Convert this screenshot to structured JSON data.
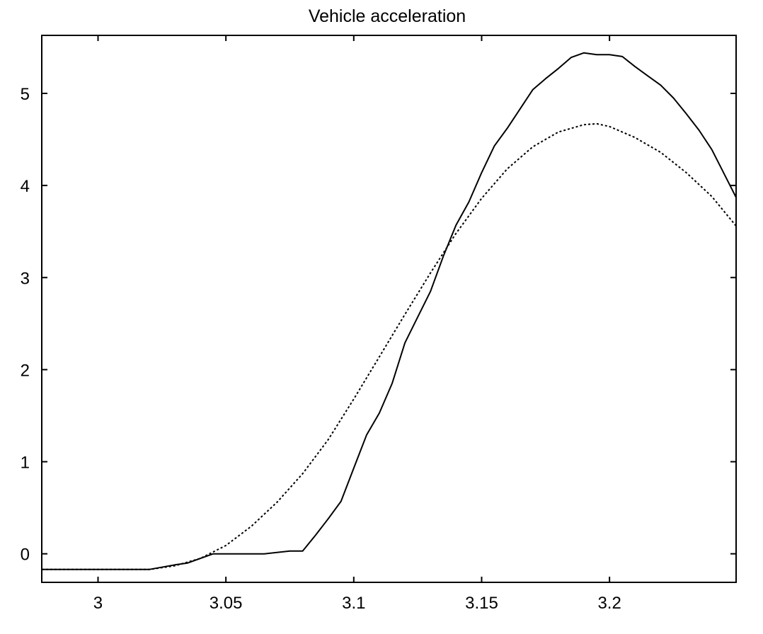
{
  "chart_data": {
    "type": "line",
    "title": "Vehicle acceleration",
    "xlabel": "",
    "ylabel": "",
    "xlim": [
      2.978,
      3.2495
    ],
    "ylim": [
      -0.31,
      5.63
    ],
    "xticks": [
      3,
      3.05,
      3.1,
      3.15,
      3.2
    ],
    "xtick_labels": [
      "3",
      "3.05",
      "3.1",
      "3.15",
      "3.2"
    ],
    "yticks": [
      0,
      1,
      2,
      3,
      4,
      5
    ],
    "ytick_labels": [
      "0",
      "1",
      "2",
      "3",
      "4",
      "5"
    ],
    "grid": false,
    "series": [
      {
        "style": "solid",
        "color": "#000000",
        "x": [
          2.978,
          3.02,
          3.03,
          3.035,
          3.045,
          3.055,
          3.065,
          3.075,
          3.08,
          3.085,
          3.09,
          3.095,
          3.1,
          3.105,
          3.11,
          3.115,
          3.12,
          3.125,
          3.13,
          3.135,
          3.14,
          3.145,
          3.15,
          3.155,
          3.16,
          3.165,
          3.17,
          3.175,
          3.18,
          3.185,
          3.19,
          3.195,
          3.2,
          3.205,
          3.21,
          3.215,
          3.22,
          3.225,
          3.23,
          3.235,
          3.24,
          3.2495
        ],
        "y": [
          -0.17,
          -0.17,
          -0.12,
          -0.1,
          0.0,
          0.0,
          0.0,
          0.03,
          0.03,
          0.2,
          0.38,
          0.57,
          0.93,
          1.29,
          1.53,
          1.85,
          2.29,
          2.57,
          2.85,
          3.23,
          3.57,
          3.82,
          4.14,
          4.43,
          4.62,
          4.83,
          5.04,
          5.16,
          5.27,
          5.39,
          5.44,
          5.42,
          5.42,
          5.4,
          5.29,
          5.19,
          5.09,
          4.95,
          4.78,
          4.6,
          4.39,
          3.87
        ]
      },
      {
        "style": "dotted",
        "color": "#000000",
        "x": [
          2.978,
          3.02,
          3.03,
          3.04,
          3.05,
          3.06,
          3.07,
          3.08,
          3.09,
          3.1,
          3.11,
          3.12,
          3.13,
          3.14,
          3.15,
          3.16,
          3.17,
          3.18,
          3.19,
          3.195,
          3.2,
          3.21,
          3.22,
          3.23,
          3.24,
          3.2495
        ],
        "y": [
          -0.17,
          -0.17,
          -0.13,
          -0.05,
          0.09,
          0.3,
          0.56,
          0.87,
          1.24,
          1.68,
          2.14,
          2.6,
          3.05,
          3.48,
          3.86,
          4.18,
          4.42,
          4.58,
          4.66,
          4.67,
          4.64,
          4.52,
          4.36,
          4.14,
          3.88,
          3.56
        ]
      }
    ]
  }
}
